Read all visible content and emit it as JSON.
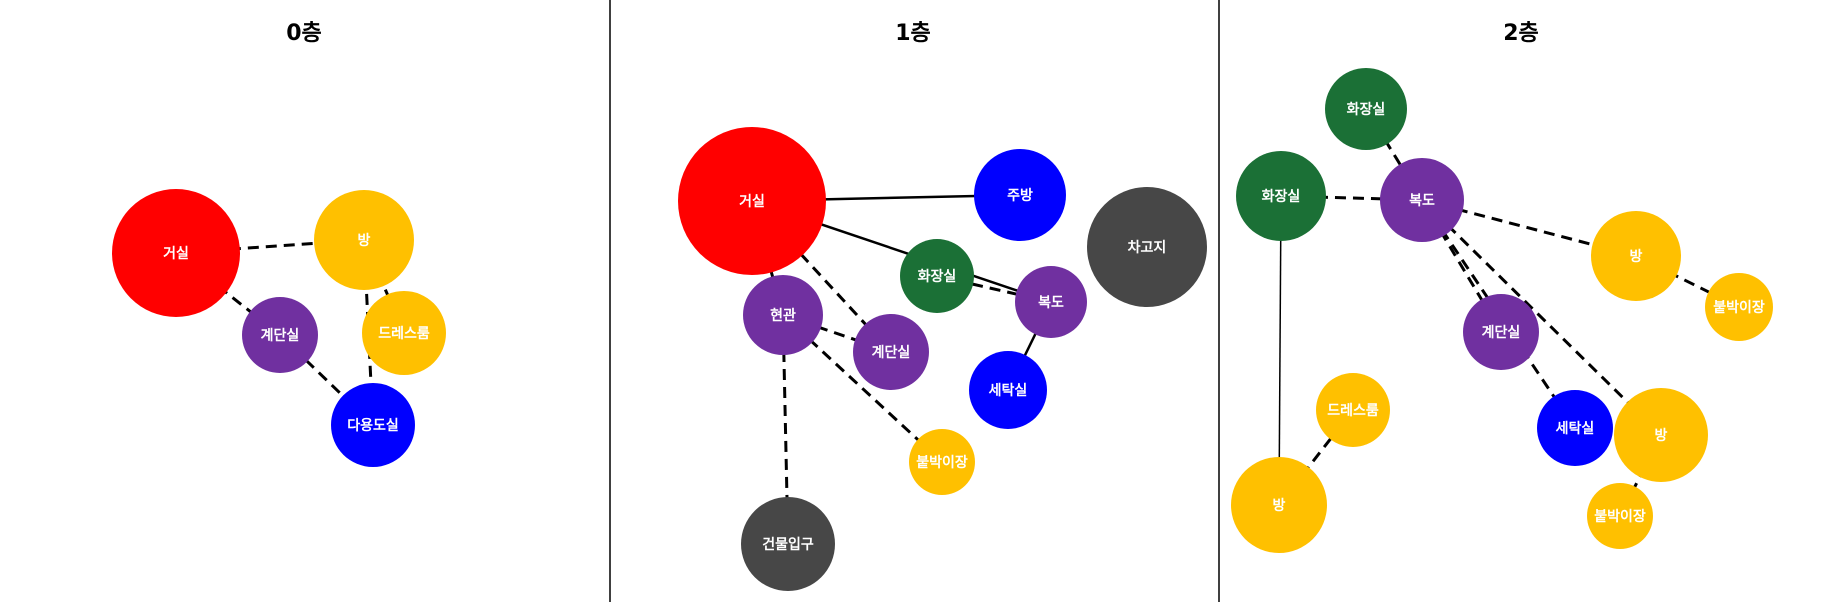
{
  "colors": {
    "red": "#ff0000",
    "yellow": "#ffc000",
    "purple": "#7030a0",
    "blue": "#0000ff",
    "green": "#1b7036",
    "gray": "#474747"
  },
  "panels": [
    {
      "title": "0층",
      "nodes": [
        {
          "id": "f0-living",
          "label": "거실",
          "color": "red"
        },
        {
          "id": "f0-room",
          "label": "방",
          "color": "yellow"
        },
        {
          "id": "f0-stairs",
          "label": "계단실",
          "color": "purple"
        },
        {
          "id": "f0-dress",
          "label": "드레스룸",
          "color": "yellow"
        },
        {
          "id": "f0-multi",
          "label": "다용도실",
          "color": "blue"
        }
      ],
      "edges": [
        {
          "from": "f0-living",
          "to": "f0-room",
          "style": "dashed"
        },
        {
          "from": "f0-living",
          "to": "f0-stairs",
          "style": "dashed"
        },
        {
          "from": "f0-room",
          "to": "f0-dress",
          "style": "dashed"
        },
        {
          "from": "f0-room",
          "to": "f0-multi",
          "style": "dashed"
        },
        {
          "from": "f0-stairs",
          "to": "f0-multi",
          "style": "dashed"
        }
      ]
    },
    {
      "title": "1층",
      "nodes": [
        {
          "id": "f1-living",
          "label": "거실",
          "color": "red"
        },
        {
          "id": "f1-kitchen",
          "label": "주방",
          "color": "blue"
        },
        {
          "id": "f1-garage",
          "label": "차고지",
          "color": "gray"
        },
        {
          "id": "f1-bath",
          "label": "화장실",
          "color": "green"
        },
        {
          "id": "f1-hall",
          "label": "복도",
          "color": "purple"
        },
        {
          "id": "f1-entry",
          "label": "현관",
          "color": "purple"
        },
        {
          "id": "f1-stairs",
          "label": "계단실",
          "color": "purple"
        },
        {
          "id": "f1-laundry",
          "label": "세탁실",
          "color": "blue"
        },
        {
          "id": "f1-closet",
          "label": "붙박이장",
          "color": "yellow"
        },
        {
          "id": "f1-entrance",
          "label": "건물입구",
          "color": "gray"
        }
      ],
      "edges": [
        {
          "from": "f1-living",
          "to": "f1-kitchen",
          "style": "solid"
        },
        {
          "from": "f1-living",
          "to": "f1-hall",
          "style": "solid"
        },
        {
          "from": "f1-bath",
          "to": "f1-hall",
          "style": "dashed"
        },
        {
          "from": "f1-hall",
          "to": "f1-laundry",
          "style": "solid"
        },
        {
          "from": "f1-living",
          "to": "f1-entry",
          "style": "dashed"
        },
        {
          "from": "f1-living",
          "to": "f1-stairs",
          "style": "dashed"
        },
        {
          "from": "f1-entry",
          "to": "f1-stairs",
          "style": "dashed"
        },
        {
          "from": "f1-entry",
          "to": "f1-closet",
          "style": "dashed"
        },
        {
          "from": "f1-entry",
          "to": "f1-entrance",
          "style": "dashed"
        }
      ]
    },
    {
      "title": "2층",
      "nodes": [
        {
          "id": "f2-bath-top",
          "label": "화장실",
          "color": "green"
        },
        {
          "id": "f2-bath-left",
          "label": "화장실",
          "color": "green"
        },
        {
          "id": "f2-hall",
          "label": "복도",
          "color": "purple"
        },
        {
          "id": "f2-room-right",
          "label": "방",
          "color": "yellow"
        },
        {
          "id": "f2-closet-right",
          "label": "붙박이장",
          "color": "yellow"
        },
        {
          "id": "f2-stairs",
          "label": "계단실",
          "color": "purple"
        },
        {
          "id": "f2-dress",
          "label": "드레스룸",
          "color": "yellow"
        },
        {
          "id": "f2-room-left",
          "label": "방",
          "color": "yellow"
        },
        {
          "id": "f2-laundry",
          "label": "세탁실",
          "color": "blue"
        },
        {
          "id": "f2-room-bottom",
          "label": "방",
          "color": "yellow"
        },
        {
          "id": "f2-closet-bottom",
          "label": "붙박이장",
          "color": "yellow"
        }
      ],
      "edges": [
        {
          "from": "f2-bath-top",
          "to": "f2-hall",
          "style": "dashed"
        },
        {
          "from": "f2-bath-left",
          "to": "f2-hall",
          "style": "dashed"
        },
        {
          "from": "f2-bath-left",
          "to": "f2-room-left",
          "style": "thin"
        },
        {
          "from": "f2-hall",
          "to": "f2-room-right",
          "style": "dashed"
        },
        {
          "from": "f2-room-right",
          "to": "f2-closet-right",
          "style": "dashed"
        },
        {
          "from": "f2-hall",
          "to": "f2-stairs",
          "style": "dashed"
        },
        {
          "from": "f2-hall",
          "to": "f2-laundry",
          "style": "dashed"
        },
        {
          "from": "f2-hall",
          "to": "f2-room-bottom",
          "style": "dashed"
        },
        {
          "from": "f2-room-bottom",
          "to": "f2-closet-bottom",
          "style": "dashed"
        },
        {
          "from": "f2-dress",
          "to": "f2-room-left",
          "style": "dashed"
        }
      ]
    }
  ]
}
